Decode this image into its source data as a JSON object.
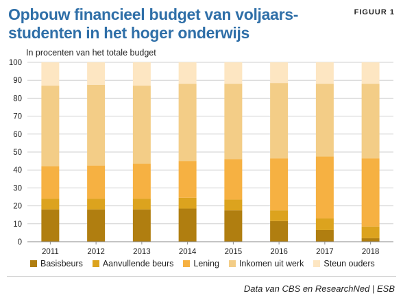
{
  "header": {
    "title": "Opbouw financieel budget van voljaars-studenten in het hoger onderwijs",
    "figure_label": "FIGUUR 1",
    "subtitle": "In procenten van het totale budget"
  },
  "footer": {
    "source": "Data van CBS en ResearchNed | ESB"
  },
  "chart_data": {
    "type": "bar",
    "stacked": true,
    "categories": [
      "2011",
      "2012",
      "2013",
      "2014",
      "2015",
      "2016",
      "2017",
      "2018"
    ],
    "ylim": [
      0,
      100
    ],
    "yticks": [
      0,
      10,
      20,
      30,
      40,
      50,
      60,
      70,
      80,
      90,
      100
    ],
    "grid": true,
    "legend_position": "bottom",
    "series": [
      {
        "name": "Basisbeurs",
        "color": "#b07e10",
        "values": [
          18,
          18,
          18,
          18.5,
          17.5,
          11.5,
          6.5,
          2
        ]
      },
      {
        "name": "Aanvullende beurs",
        "color": "#dca31e",
        "values": [
          6,
          6,
          6,
          6,
          6,
          6,
          6.5,
          6.5
        ]
      },
      {
        "name": "Lening",
        "color": "#f6b142",
        "values": [
          18,
          18.5,
          19.5,
          20.5,
          22.5,
          29,
          34.5,
          38
        ]
      },
      {
        "name": "Inkomen uit werk",
        "color": "#f3cd87",
        "values": [
          45,
          45,
          43.5,
          43,
          42,
          42,
          40.5,
          41.5
        ]
      },
      {
        "name": "Steun ouders",
        "color": "#fde6c2",
        "values": [
          13,
          12.5,
          13,
          12,
          12,
          11.5,
          12,
          12
        ]
      }
    ]
  }
}
